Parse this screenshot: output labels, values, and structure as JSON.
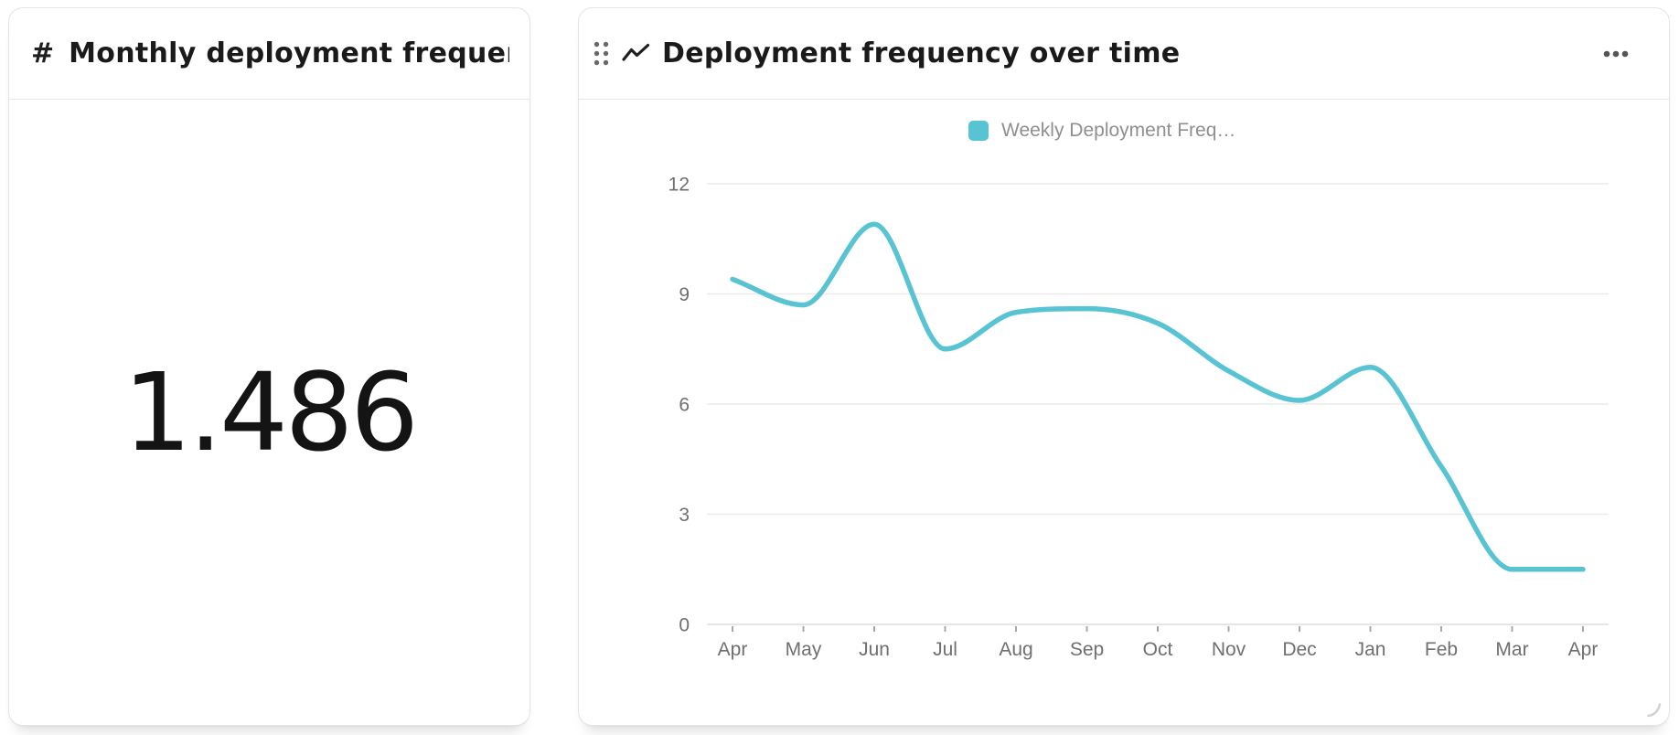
{
  "metric_card": {
    "icon_label": "#",
    "title": "Monthly deployment frequen…",
    "value": "1.486"
  },
  "chart_card": {
    "title": "Deployment frequency over time"
  },
  "chart_data": {
    "type": "line",
    "title": "Deployment frequency over time",
    "legend_position": "top",
    "grid": true,
    "x_labels": [
      "Apr",
      "May",
      "Jun",
      "Jul",
      "Aug",
      "Sep",
      "Oct",
      "Nov",
      "Dec",
      "Jan",
      "Feb",
      "Mar",
      "Apr"
    ],
    "series": [
      {
        "name": "Weekly Deployment Freq…",
        "color": "#58c3d2",
        "values": [
          9.4,
          8.7,
          10.9,
          7.5,
          8.5,
          8.6,
          8.2,
          6.9,
          6.1,
          7.0,
          4.3,
          1.5,
          1.5
        ]
      }
    ],
    "ylim": [
      0,
      12
    ],
    "yticks": [
      0,
      3,
      6,
      9,
      12
    ]
  },
  "colors": {
    "accent_teal": "#58c3d2",
    "card_border": "#e4e4e4",
    "gridline": "#ebebeb",
    "axis_line": "#dedede",
    "axis_label": "#6f6f6f",
    "legend_text": "#8f8f8f",
    "title_text": "#1a1a1a"
  }
}
